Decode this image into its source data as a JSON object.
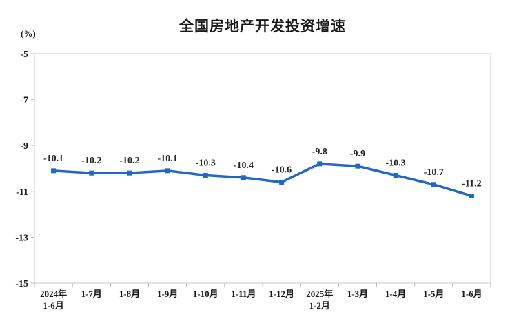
{
  "chart_data": {
    "type": "line",
    "title": "全国房地产开发投资增速",
    "unit_label": "(%)",
    "xlabel": "",
    "ylabel": "(%)",
    "categories": [
      "2024年\n1-6月",
      "1-7月",
      "1-8月",
      "1-9月",
      "1-10月",
      "1-11月",
      "1-12月",
      "2025年\n1-2月",
      "1-3月",
      "1-4月",
      "1-5月",
      "1-6月"
    ],
    "values": [
      -10.1,
      -10.2,
      -10.2,
      -10.1,
      -10.3,
      -10.4,
      -10.6,
      -9.8,
      -9.9,
      -10.3,
      -10.7,
      -11.2
    ],
    "data_labels": [
      "-10.1",
      "-10.2",
      "-10.2",
      "-10.1",
      "-10.3",
      "-10.4",
      "-10.6",
      "-9.8",
      "-9.9",
      "-10.3",
      "-10.7",
      "-11.2"
    ],
    "ylim": [
      -15,
      -5
    ],
    "y_ticks": [
      -5,
      -7,
      -9,
      -11,
      -13,
      -15
    ],
    "grid": false,
    "legend_position": "none",
    "colors": {
      "line": "#2068C8",
      "marker": "#2068C8",
      "axis_border": "#c9c9c9",
      "tick": "#b8b8b8",
      "label": "#262626",
      "background": "#ffffff"
    },
    "marker_shape": "square"
  }
}
